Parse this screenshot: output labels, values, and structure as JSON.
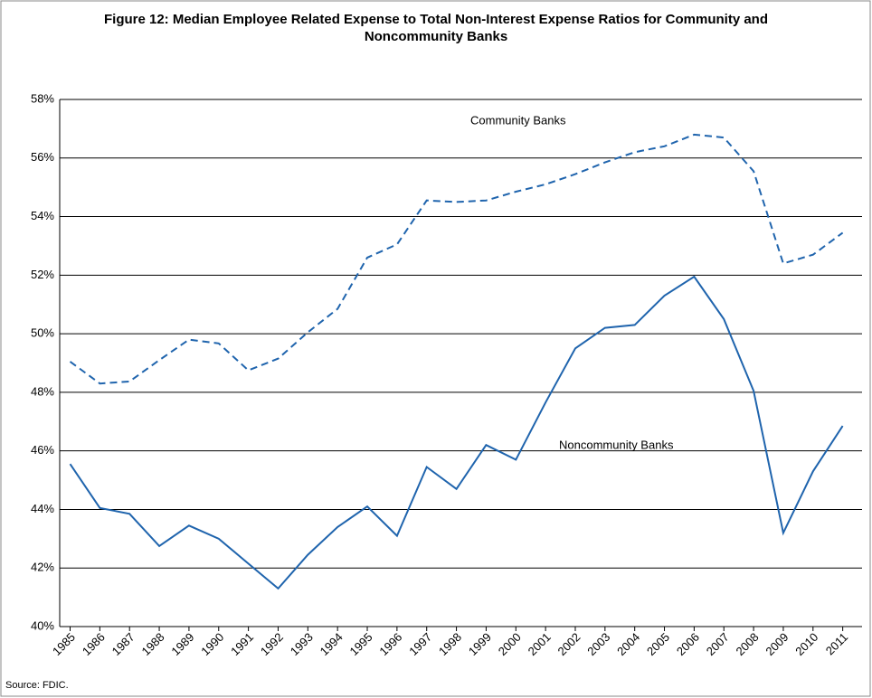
{
  "chart_data": {
    "type": "line",
    "title": "Figure 12: Median Employee Related Expense to Total Non-Interest Expense Ratios for Community and Noncommunity Banks",
    "source": "Source: FDIC.",
    "categories": [
      "1985",
      "1986",
      "1987",
      "1988",
      "1989",
      "1990",
      "1991",
      "1992",
      "1993",
      "1994",
      "1995",
      "1996",
      "1997",
      "1998",
      "1999",
      "2000",
      "2001",
      "2002",
      "2003",
      "2004",
      "2005",
      "2006",
      "2007",
      "2008",
      "2009",
      "2010",
      "2011"
    ],
    "series": [
      {
        "name": "Community Banks",
        "color": "#1f64ad",
        "line_style": "dashed",
        "values": [
          49.05,
          48.3,
          48.37,
          49.1,
          49.8,
          49.67,
          48.75,
          49.15,
          50.05,
          50.85,
          52.6,
          53.05,
          54.55,
          54.5,
          54.55,
          54.85,
          55.1,
          55.45,
          55.85,
          56.2,
          56.4,
          56.8,
          56.7,
          55.55,
          52.4,
          52.7,
          53.45
        ]
      },
      {
        "name": "Noncommunity Banks",
        "color": "#1f64ad",
        "line_style": "solid",
        "values": [
          45.55,
          44.05,
          43.85,
          42.75,
          43.45,
          43.0,
          42.15,
          41.3,
          42.45,
          43.4,
          44.1,
          43.1,
          45.45,
          44.7,
          46.2,
          45.7,
          47.65,
          49.5,
          50.2,
          50.3,
          51.3,
          51.95,
          50.5,
          48.05,
          43.2,
          45.3,
          46.85
        ]
      }
    ],
    "ylim": [
      40,
      58
    ],
    "yticks": [
      {
        "value": 40,
        "label": "40%"
      },
      {
        "value": 42,
        "label": "42%"
      },
      {
        "value": 44,
        "label": "44%"
      },
      {
        "value": 46,
        "label": "46%"
      },
      {
        "value": 48,
        "label": "48%"
      },
      {
        "value": 50,
        "label": "50%"
      },
      {
        "value": 52,
        "label": "52%"
      },
      {
        "value": 54,
        "label": "54%"
      },
      {
        "value": 56,
        "label": "56%"
      },
      {
        "value": 58,
        "label": "58%"
      }
    ],
    "grid": true
  }
}
